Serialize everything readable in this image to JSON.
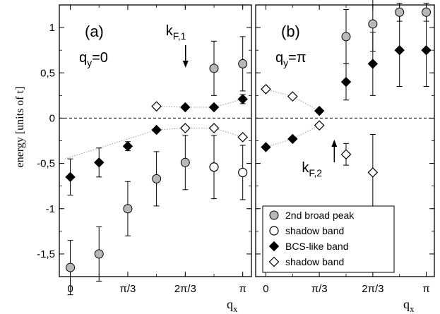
{
  "colors": {
    "gray_fill": "#b8b8b8",
    "black": "#000000",
    "guide": "#9a9a9a"
  },
  "chart_data": {
    "type": "scatter",
    "ylabel": "energy  [units of t]",
    "xlabel": "q",
    "xlabel_sub": "x",
    "ylim": [
      -1.75,
      1.25
    ],
    "xlim": [
      -0.2,
      3.3
    ],
    "y_ticks": [
      {
        "v": 1,
        "label": "1"
      },
      {
        "v": 0.5,
        "label": "0,5"
      },
      {
        "v": 0,
        "label": "0"
      },
      {
        "v": -0.5,
        "label": "-0,5"
      },
      {
        "v": -1,
        "label": "-1"
      },
      {
        "v": -1.5,
        "label": "-1,5"
      }
    ],
    "x_ticks": [
      {
        "v": 0,
        "label": "0"
      },
      {
        "v": 1.0472,
        "label": "π/3"
      },
      {
        "v": 2.0944,
        "label": "2π/3"
      },
      {
        "v": 3.1416,
        "label": "π"
      }
    ],
    "legend": [
      {
        "marker": "gray-circle",
        "label": "2nd  broad peak"
      },
      {
        "marker": "open-circle",
        "label": "shadow band"
      },
      {
        "marker": "filled-diamond",
        "label": "BCS-like band"
      },
      {
        "marker": "open-diamond",
        "label": "shadow band"
      }
    ],
    "panels": [
      {
        "label": "(a)",
        "qy_label": "q",
        "qy_sub": "y",
        "qy_value": "=0",
        "kf_label": "k",
        "kf_sub": "F,1",
        "kf_x": 2.1,
        "series": [
          {
            "marker": "gray-circle",
            "points": [
              {
                "x": 0,
                "y": -1.65,
                "err": 0.3
              },
              {
                "x": 0.5236,
                "y": -1.5,
                "err": 0.3
              },
              {
                "x": 1.0472,
                "y": -1.0,
                "err": 0.3
              },
              {
                "x": 1.5708,
                "y": -0.67,
                "err": 0.3
              },
              {
                "x": 2.0944,
                "y": -0.49,
                "err": 0.3
              },
              {
                "x": 2.618,
                "y": 0.55,
                "err": 0.3
              },
              {
                "x": 3.1416,
                "y": 0.6,
                "err": 0.3
              }
            ]
          },
          {
            "marker": "open-circle",
            "points": [
              {
                "x": 2.618,
                "y": -0.54,
                "err": 0.35
              },
              {
                "x": 3.1416,
                "y": -0.6,
                "err": 0.3
              }
            ]
          },
          {
            "marker": "filled-diamond",
            "points": [
              {
                "x": 0,
                "y": -0.65,
                "err": 0.2
              },
              {
                "x": 0.5236,
                "y": -0.49,
                "err": 0.16
              },
              {
                "x": 1.0472,
                "y": -0.31,
                "err": 0.05
              },
              {
                "x": 1.5708,
                "y": -0.13,
                "err": 0.02
              },
              {
                "x": 2.0944,
                "y": 0.12,
                "err": 0.02
              },
              {
                "x": 2.618,
                "y": 0.12,
                "err": 0.02
              },
              {
                "x": 3.1416,
                "y": 0.21,
                "err": 0.05
              }
            ]
          },
          {
            "marker": "open-diamond",
            "points": [
              {
                "x": 1.5708,
                "y": 0.13,
                "err": 0.0
              },
              {
                "x": 2.0944,
                "y": -0.11,
                "err": 0.0
              },
              {
                "x": 2.618,
                "y": -0.11,
                "err": 0.0
              },
              {
                "x": 3.1416,
                "y": -0.21,
                "err": 0.0
              }
            ]
          }
        ],
        "guides": [
          [
            {
              "x": -0.1,
              "y": -0.45
            },
            {
              "x": 1.5708,
              "y": -0.13
            },
            {
              "x": 2.0944,
              "y": -0.11
            },
            {
              "x": 2.618,
              "y": -0.11
            },
            {
              "x": 3.1416,
              "y": -0.21
            }
          ],
          [
            {
              "x": 1.5708,
              "y": 0.13
            },
            {
              "x": 2.0944,
              "y": 0.12
            },
            {
              "x": 2.618,
              "y": 0.12
            },
            {
              "x": 3.1416,
              "y": 0.21
            }
          ]
        ]
      },
      {
        "label": "(b)",
        "qy_label": "q",
        "qy_sub": "y",
        "qy_value": "=π",
        "kf_label": "k",
        "kf_sub": "F,2",
        "kf_x": 1.34,
        "series": [
          {
            "marker": "gray-circle",
            "points": [
              {
                "x": 1.5708,
                "y": 0.9,
                "err": 0.3
              },
              {
                "x": 2.0944,
                "y": 1.04,
                "err": 0.3
              },
              {
                "x": 2.618,
                "y": 1.17,
                "err": 0.1
              },
              {
                "x": 3.1416,
                "y": 1.17,
                "err": 0.1
              }
            ]
          },
          {
            "marker": "filled-diamond",
            "points": [
              {
                "x": 0,
                "y": -0.32,
                "err": 0.02
              },
              {
                "x": 0.5236,
                "y": -0.23,
                "err": 0.02
              },
              {
                "x": 1.0472,
                "y": 0.08,
                "err": 0.02
              },
              {
                "x": 1.5708,
                "y": 0.4,
                "err": 0.2
              },
              {
                "x": 2.0944,
                "y": 0.6,
                "err": 0.35
              },
              {
                "x": 2.618,
                "y": 0.75,
                "err": 0.4
              },
              {
                "x": 3.1416,
                "y": 0.75,
                "err": 0.4
              }
            ]
          },
          {
            "marker": "open-diamond",
            "points": [
              {
                "x": 0,
                "y": 0.32,
                "err": 0.0
              },
              {
                "x": 0.5236,
                "y": 0.24,
                "err": 0.0
              },
              {
                "x": 1.0472,
                "y": -0.08,
                "err": 0.0
              },
              {
                "x": 1.5708,
                "y": -0.4,
                "err": 0.12
              },
              {
                "x": 2.0944,
                "y": -0.6,
                "err": 0.42
              }
            ]
          }
        ],
        "guides": [
          [
            {
              "x": 0,
              "y": 0.32
            },
            {
              "x": 0.5236,
              "y": 0.24
            },
            {
              "x": 1.0472,
              "y": 0.08
            }
          ],
          [
            {
              "x": 0,
              "y": -0.32
            },
            {
              "x": 0.5236,
              "y": -0.23
            },
            {
              "x": 1.0472,
              "y": -0.08
            }
          ]
        ]
      }
    ]
  }
}
